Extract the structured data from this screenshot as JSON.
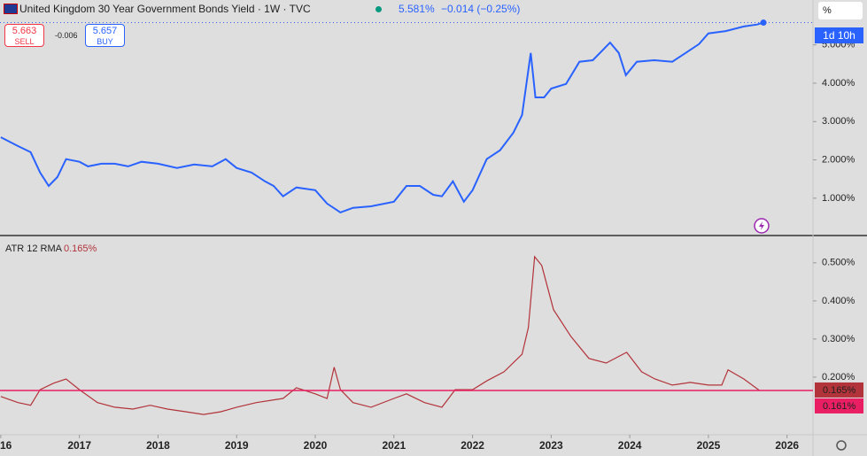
{
  "header": {
    "sell_price": "5.663",
    "sell_label": "SELL",
    "spread": "-0.006",
    "buy_price": "5.657",
    "buy_label": "BUY",
    "unit_button": "%"
  },
  "chart_data": [
    {
      "type": "line",
      "title": "United Kingdom 30 Year Government Bonds Yield · 1W · TVC",
      "last_value_label": "5.581%",
      "change_label": "−0.014 (−0.25%)",
      "countdown": "1d 10h",
      "color": "#2962ff",
      "x": [
        2016.0,
        2016.22,
        2016.38,
        2016.5,
        2016.61,
        2016.72,
        2016.83,
        2017.0,
        2017.11,
        2017.28,
        2017.45,
        2017.62,
        2017.79,
        2018.0,
        2018.24,
        2018.46,
        2018.69,
        2018.86,
        2019.0,
        2019.19,
        2019.36,
        2019.47,
        2019.59,
        2019.76,
        2020.0,
        2020.15,
        2020.32,
        2020.48,
        2020.71,
        2021.0,
        2021.16,
        2021.33,
        2021.5,
        2021.61,
        2021.75,
        2021.89,
        2022.0,
        2022.18,
        2022.35,
        2022.52,
        2022.63,
        2022.74,
        2022.8,
        2022.91,
        2023.0,
        2023.19,
        2023.36,
        2023.53,
        2023.75,
        2023.86,
        2023.95,
        2024.09,
        2024.31,
        2024.54,
        2024.71,
        2024.88,
        2025.0,
        2025.22,
        2025.45,
        2025.62,
        2025.7
      ],
      "values": [
        2.59,
        2.36,
        2.2,
        1.67,
        1.32,
        1.55,
        2.02,
        1.95,
        1.83,
        1.9,
        1.9,
        1.83,
        1.95,
        1.9,
        1.79,
        1.88,
        1.83,
        2.02,
        1.79,
        1.67,
        1.44,
        1.32,
        1.05,
        1.28,
        1.21,
        0.86,
        0.63,
        0.75,
        0.79,
        0.91,
        1.32,
        1.32,
        1.09,
        1.05,
        1.44,
        0.91,
        1.21,
        2.02,
        2.25,
        2.71,
        3.17,
        4.79,
        3.63,
        3.63,
        3.86,
        3.98,
        4.56,
        4.6,
        5.06,
        4.79,
        4.21,
        4.56,
        4.6,
        4.56,
        4.79,
        5.02,
        5.3,
        5.36,
        5.48,
        5.53,
        5.58
      ],
      "xlim": [
        2015.99,
        2026.33
      ],
      "ylim": [
        0.05,
        6.17
      ],
      "yticks": [
        {
          "value": 1,
          "label": "1.000%"
        },
        {
          "value": 2,
          "label": "2.000%"
        },
        {
          "value": 3,
          "label": "3.000%"
        },
        {
          "value": 4,
          "label": "4.000%"
        },
        {
          "value": 5,
          "label": "5.000%"
        }
      ]
    },
    {
      "type": "line",
      "title": "ATR 12 RMA",
      "value_label": "0.165%",
      "color": "#b2333a",
      "x": [
        2016.0,
        2016.22,
        2016.38,
        2016.5,
        2016.67,
        2016.83,
        2017.0,
        2017.23,
        2017.45,
        2017.68,
        2017.9,
        2018.12,
        2018.35,
        2018.58,
        2018.8,
        2019.0,
        2019.25,
        2019.59,
        2019.76,
        2020.0,
        2020.15,
        2020.24,
        2020.32,
        2020.48,
        2020.71,
        2021.0,
        2021.16,
        2021.39,
        2021.61,
        2021.78,
        2022.0,
        2022.18,
        2022.4,
        2022.63,
        2022.71,
        2022.79,
        2022.88,
        2023.03,
        2023.25,
        2023.48,
        2023.7,
        2023.96,
        2024.15,
        2024.32,
        2024.54,
        2024.77,
        2025.0,
        2025.17,
        2025.25,
        2025.45,
        2025.65
      ],
      "values": [
        0.149,
        0.133,
        0.126,
        0.167,
        0.184,
        0.195,
        0.167,
        0.133,
        0.121,
        0.116,
        0.126,
        0.116,
        0.109,
        0.102,
        0.109,
        0.121,
        0.133,
        0.144,
        0.172,
        0.156,
        0.144,
        0.226,
        0.167,
        0.133,
        0.121,
        0.144,
        0.156,
        0.133,
        0.121,
        0.167,
        0.167,
        0.19,
        0.214,
        0.26,
        0.33,
        0.516,
        0.493,
        0.377,
        0.307,
        0.249,
        0.237,
        0.265,
        0.214,
        0.195,
        0.179,
        0.186,
        0.179,
        0.179,
        0.219,
        0.195,
        0.165
      ],
      "last_value": 0.165,
      "last_value_label": "0.165%",
      "level": {
        "value": 0.161,
        "label": "0.161%"
      },
      "level_color": "#e91e63",
      "xlim": [
        2015.99,
        2026.33
      ],
      "ylim": [
        0.051,
        0.567
      ],
      "yticks": [
        {
          "value": 0.2,
          "label": "0.200%"
        },
        {
          "value": 0.3,
          "label": "0.300%"
        },
        {
          "value": 0.4,
          "label": "0.400%"
        },
        {
          "value": 0.5,
          "label": "0.500%"
        }
      ],
      "xticks": [
        {
          "value": 2016,
          "label": "16"
        },
        2017,
        2018,
        2019,
        2020,
        2021,
        2022,
        2023,
        2024,
        2025,
        2026
      ]
    }
  ]
}
